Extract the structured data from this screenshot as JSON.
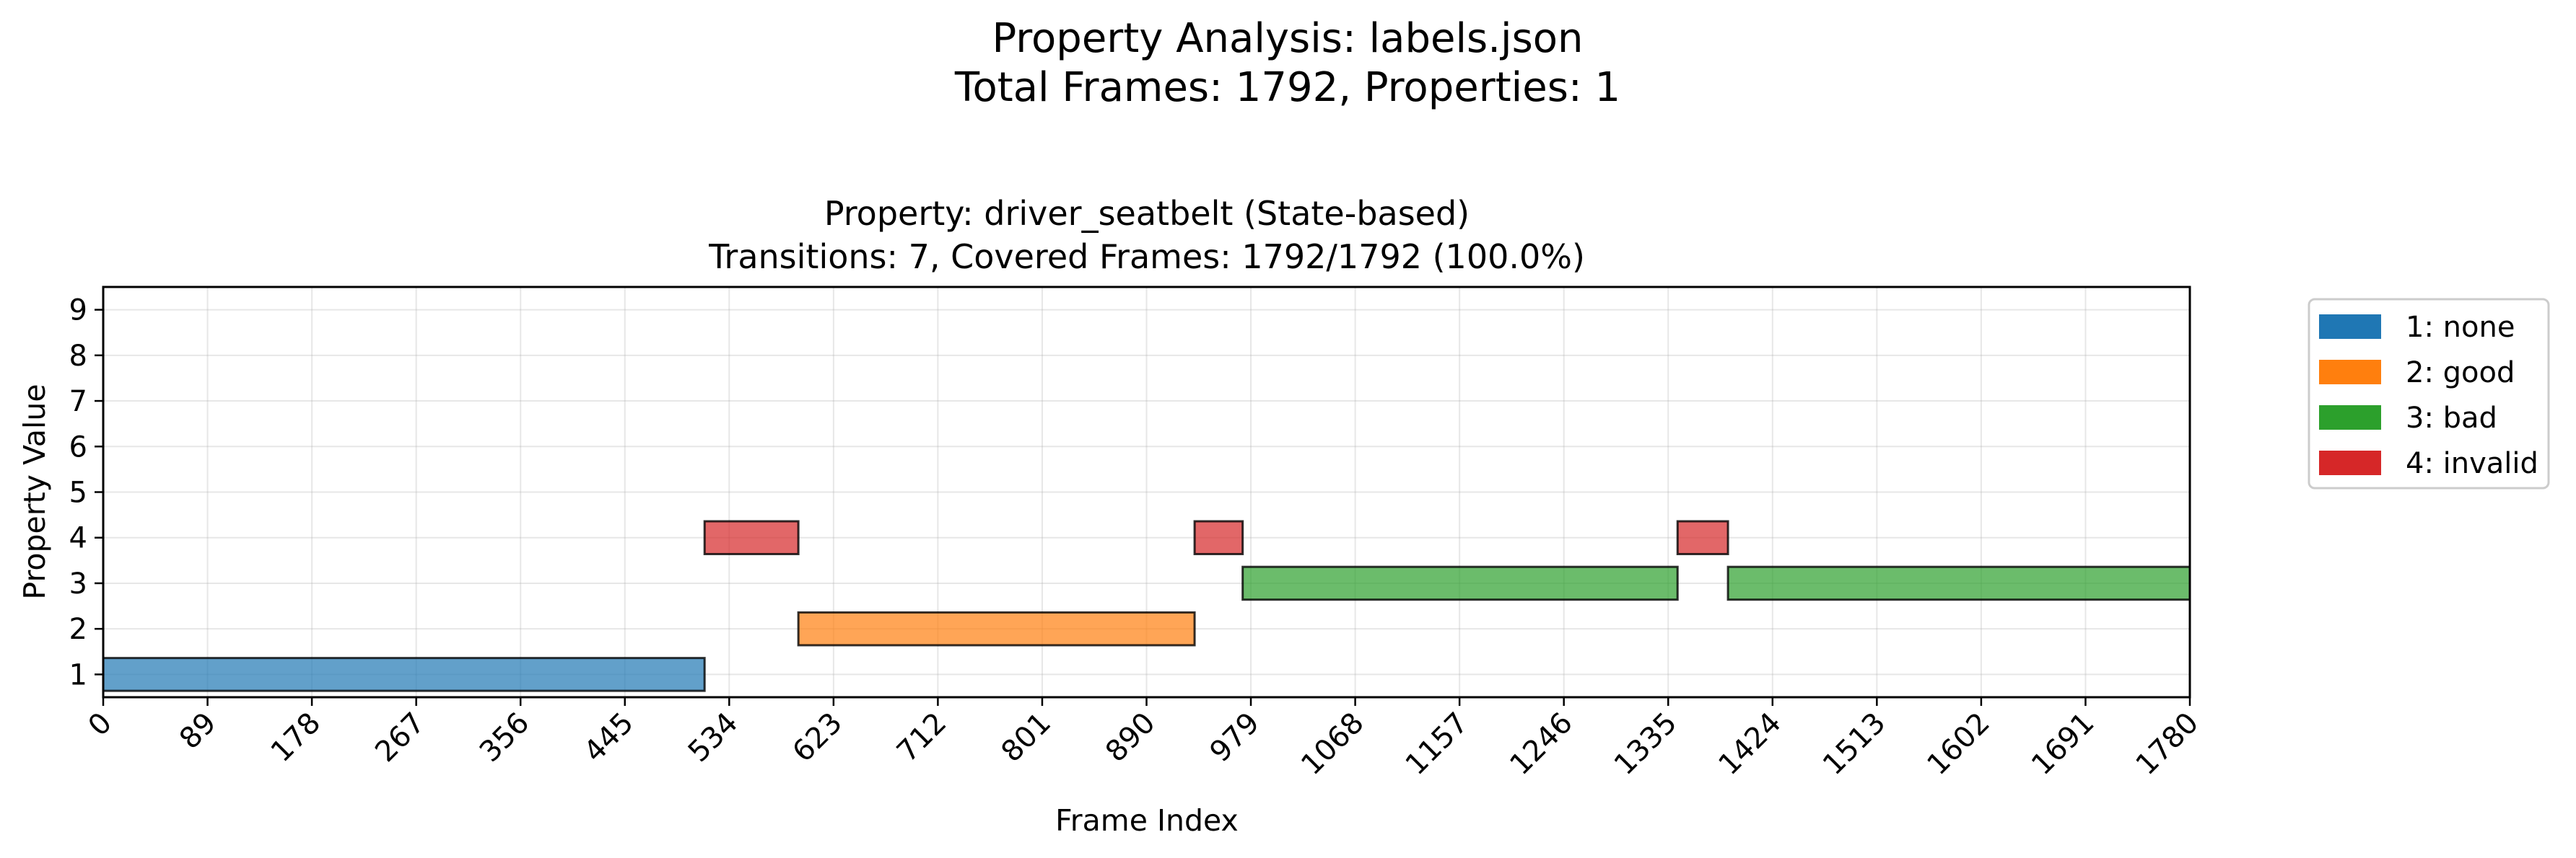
{
  "figure": {
    "suptitle_line1": "Property Analysis: labels.json",
    "suptitle_line2": "Total Frames: 1792, Properties: 1"
  },
  "chart_data": {
    "type": "bar",
    "title_line1": "Property: driver_seatbelt (State-based)",
    "title_line2": "Transitions: 7, Covered Frames: 1792/1792 (100.0%)",
    "xlabel": "Frame Index",
    "ylabel": "Property Value",
    "xlim": [
      0,
      1780
    ],
    "ylim": [
      0.5,
      9.5
    ],
    "xticks": [
      "0",
      "89",
      "178",
      "267",
      "356",
      "445",
      "534",
      "623",
      "712",
      "801",
      "890",
      "979",
      "1068",
      "1157",
      "1246",
      "1335",
      "1424",
      "1513",
      "1602",
      "1691",
      "1780"
    ],
    "yticks": [
      "1",
      "2",
      "3",
      "4",
      "5",
      "6",
      "7",
      "8",
      "9"
    ],
    "grid": true,
    "legend_position": "outside-right",
    "legend": [
      {
        "label": "1: none",
        "color": "#1f77b4"
      },
      {
        "label": "2: good",
        "color": "#ff7f0e"
      },
      {
        "label": "3: bad",
        "color": "#2ca02c"
      },
      {
        "label": "4: invalid",
        "color": "#d62728"
      }
    ],
    "segments": [
      {
        "start": 0,
        "end": 513,
        "value": 1,
        "color": "#1f77b4"
      },
      {
        "start": 513,
        "end": 593,
        "value": 4,
        "color": "#d62728"
      },
      {
        "start": 593,
        "end": 931,
        "value": 2,
        "color": "#ff7f0e"
      },
      {
        "start": 931,
        "end": 972,
        "value": 4,
        "color": "#d62728"
      },
      {
        "start": 972,
        "end": 1343,
        "value": 3,
        "color": "#2ca02c"
      },
      {
        "start": 1343,
        "end": 1386,
        "value": 4,
        "color": "#d62728"
      },
      {
        "start": 1386,
        "end": 1792,
        "value": 3,
        "color": "#2ca02c"
      }
    ]
  }
}
